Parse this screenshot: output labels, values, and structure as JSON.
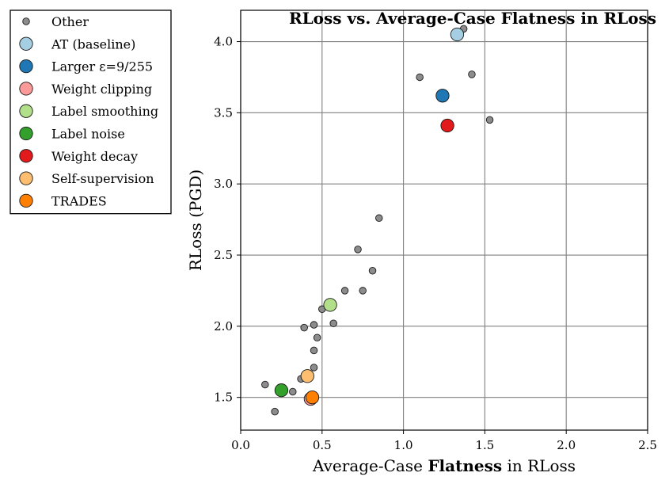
{
  "chart_data": {
    "type": "scatter",
    "title": "RLoss vs. Average-Case Flatness in RLoss",
    "xlabel_prefix": "Average-Case ",
    "xlabel_bold": "Flatness",
    "xlabel_suffix": " in RLoss",
    "ylabel": "RLoss (PGD)",
    "xlim": [
      0.0,
      2.5
    ],
    "ylim": [
      1.27,
      4.22
    ],
    "xticks": [
      0.0,
      0.5,
      1.0,
      1.5,
      2.0,
      2.5
    ],
    "xtick_labels": [
      "0.0",
      "0.5",
      "1.0",
      "1.5",
      "2.0",
      "2.5"
    ],
    "yticks": [
      1.5,
      2.0,
      2.5,
      3.0,
      3.5,
      4.0
    ],
    "ytick_labels": [
      "1.5",
      "2.0",
      "2.5",
      "3.0",
      "3.5",
      "4.0"
    ],
    "grid": true,
    "legend_position": "outside-left",
    "series": [
      {
        "name": "Other",
        "color": "#8c8c8c",
        "marker": "small",
        "points": [
          [
            1.37,
            4.09
          ],
          [
            1.1,
            3.75
          ],
          [
            1.42,
            3.77
          ],
          [
            1.53,
            3.45
          ],
          [
            0.85,
            2.76
          ],
          [
            0.72,
            2.54
          ],
          [
            0.64,
            2.25
          ],
          [
            0.75,
            2.25
          ],
          [
            0.81,
            2.39
          ],
          [
            0.5,
            2.12
          ],
          [
            0.39,
            1.99
          ],
          [
            0.45,
            2.01
          ],
          [
            0.57,
            2.02
          ],
          [
            0.47,
            1.92
          ],
          [
            0.45,
            1.83
          ],
          [
            0.45,
            1.71
          ],
          [
            0.37,
            1.63
          ],
          [
            0.15,
            1.59
          ],
          [
            0.32,
            1.54
          ],
          [
            0.21,
            1.4
          ],
          [
            0.42,
            1.5
          ]
        ]
      },
      {
        "name": "AT (baseline)",
        "color": "#a6cee3",
        "marker": "large",
        "points": [
          [
            1.33,
            4.05
          ]
        ]
      },
      {
        "name": "Larger ε=9/255",
        "color": "#1f78b4",
        "marker": "large",
        "points": [
          [
            1.24,
            3.62
          ]
        ]
      },
      {
        "name": "Weight clipping",
        "color": "#fb9a99",
        "marker": "large",
        "points": [
          [
            0.43,
            1.49
          ]
        ]
      },
      {
        "name": "Label smoothing",
        "color": "#b2df8a",
        "marker": "large",
        "points": [
          [
            0.55,
            2.15
          ]
        ]
      },
      {
        "name": "Label noise",
        "color": "#33a02c",
        "marker": "large",
        "points": [
          [
            0.25,
            1.55
          ]
        ]
      },
      {
        "name": "Weight decay",
        "color": "#e31a1c",
        "marker": "large",
        "points": [
          [
            1.27,
            3.41
          ]
        ]
      },
      {
        "name": "Self-supervision",
        "color": "#fdbf6f",
        "marker": "large",
        "points": [
          [
            0.41,
            1.65
          ]
        ]
      },
      {
        "name": "TRADES",
        "color": "#ff7f00",
        "marker": "large",
        "points": [
          [
            0.44,
            1.5
          ]
        ]
      }
    ]
  }
}
